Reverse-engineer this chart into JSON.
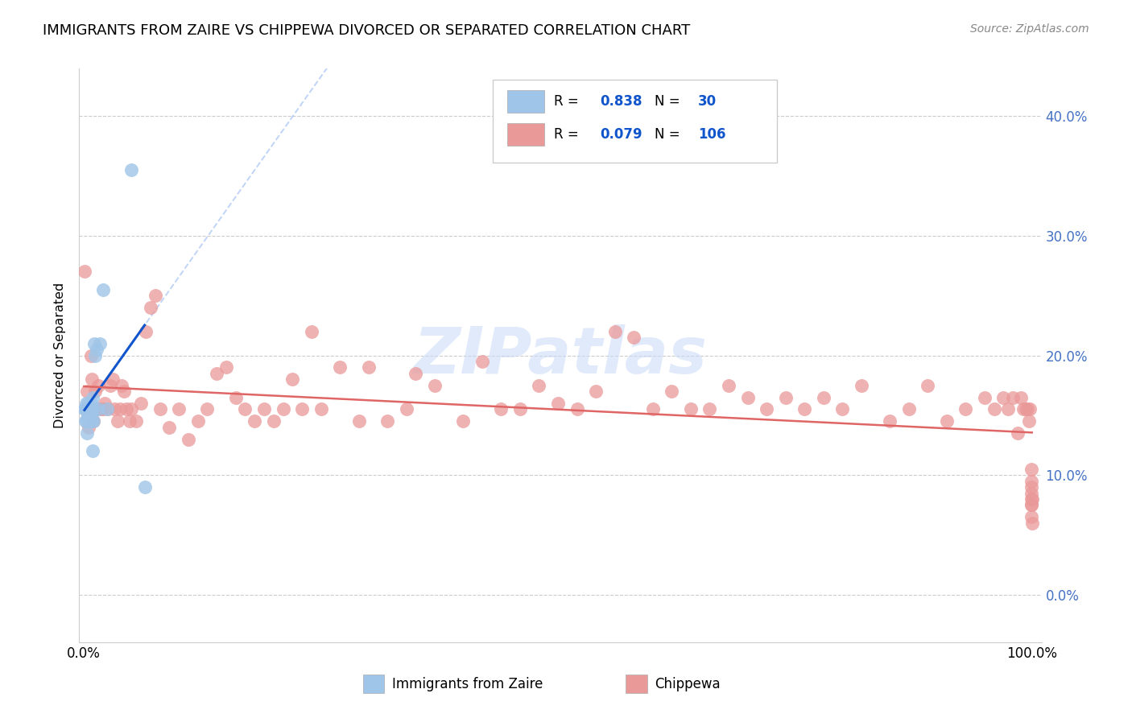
{
  "title": "IMMIGRANTS FROM ZAIRE VS CHIPPEWA DIVORCED OR SEPARATED CORRELATION CHART",
  "source": "Source: ZipAtlas.com",
  "ylabel": "Divorced or Separated",
  "legend_label1": "Immigrants from Zaire",
  "legend_label2": "Chippewa",
  "R1": "0.838",
  "N1": "30",
  "R2": "0.079",
  "N2": "106",
  "color_blue": "#9fc5e8",
  "color_pink": "#ea9999",
  "color_blue_line": "#1155cc",
  "color_pink_line": "#e06666",
  "color_blue_dash": "#a4c2f4",
  "color_legend_text": "#1155cc",
  "color_right_axis": "#4472c4",
  "watermark_text": "ZIPatlas",
  "watermark_color": "#c9daf8",
  "ytick_vals": [
    0.0,
    0.1,
    0.2,
    0.3,
    0.4
  ],
  "ytick_labels": [
    "0.0%",
    "10.0%",
    "20.0%",
    "30.0%",
    "40.0%"
  ],
  "xmin": 0.0,
  "xmax": 1.0,
  "ymin": -0.04,
  "ymax": 0.44,
  "blue_x": [
    0.0005,
    0.001,
    0.0015,
    0.002,
    0.002,
    0.003,
    0.003,
    0.004,
    0.004,
    0.005,
    0.005,
    0.006,
    0.006,
    0.007,
    0.007,
    0.008,
    0.008,
    0.009,
    0.009,
    0.01,
    0.01,
    0.011,
    0.012,
    0.013,
    0.015,
    0.017,
    0.02,
    0.024,
    0.05,
    0.064
  ],
  "blue_y": [
    0.155,
    0.155,
    0.145,
    0.16,
    0.145,
    0.155,
    0.135,
    0.15,
    0.16,
    0.155,
    0.145,
    0.155,
    0.145,
    0.15,
    0.16,
    0.155,
    0.145,
    0.12,
    0.165,
    0.155,
    0.145,
    0.21,
    0.2,
    0.205,
    0.155,
    0.21,
    0.255,
    0.155,
    0.355,
    0.09
  ],
  "pink_x": [
    0.001,
    0.002,
    0.003,
    0.004,
    0.005,
    0.006,
    0.007,
    0.008,
    0.009,
    0.01,
    0.012,
    0.015,
    0.015,
    0.018,
    0.02,
    0.022,
    0.025,
    0.028,
    0.03,
    0.032,
    0.035,
    0.038,
    0.04,
    0.042,
    0.045,
    0.048,
    0.05,
    0.055,
    0.06,
    0.065,
    0.07,
    0.075,
    0.08,
    0.09,
    0.1,
    0.11,
    0.12,
    0.13,
    0.14,
    0.15,
    0.16,
    0.17,
    0.18,
    0.19,
    0.2,
    0.21,
    0.22,
    0.23,
    0.24,
    0.25,
    0.27,
    0.29,
    0.3,
    0.32,
    0.34,
    0.35,
    0.37,
    0.4,
    0.42,
    0.44,
    0.46,
    0.48,
    0.5,
    0.52,
    0.54,
    0.56,
    0.58,
    0.6,
    0.62,
    0.64,
    0.66,
    0.68,
    0.7,
    0.72,
    0.74,
    0.76,
    0.78,
    0.8,
    0.82,
    0.85,
    0.87,
    0.89,
    0.91,
    0.93,
    0.95,
    0.96,
    0.97,
    0.975,
    0.98,
    0.985,
    0.988,
    0.991,
    0.993,
    0.995,
    0.997,
    0.998,
    0.999,
    0.999,
    0.999,
    0.9995,
    0.9995,
    0.9995,
    0.9997,
    0.9997,
    0.9998,
    0.9998
  ],
  "pink_y": [
    0.27,
    0.155,
    0.17,
    0.155,
    0.14,
    0.155,
    0.2,
    0.18,
    0.155,
    0.145,
    0.17,
    0.155,
    0.175,
    0.155,
    0.155,
    0.16,
    0.155,
    0.175,
    0.18,
    0.155,
    0.145,
    0.155,
    0.175,
    0.17,
    0.155,
    0.145,
    0.155,
    0.145,
    0.16,
    0.22,
    0.24,
    0.25,
    0.155,
    0.14,
    0.155,
    0.13,
    0.145,
    0.155,
    0.185,
    0.19,
    0.165,
    0.155,
    0.145,
    0.155,
    0.145,
    0.155,
    0.18,
    0.155,
    0.22,
    0.155,
    0.19,
    0.145,
    0.19,
    0.145,
    0.155,
    0.185,
    0.175,
    0.145,
    0.195,
    0.155,
    0.155,
    0.175,
    0.16,
    0.155,
    0.17,
    0.22,
    0.215,
    0.155,
    0.17,
    0.155,
    0.155,
    0.175,
    0.165,
    0.155,
    0.165,
    0.155,
    0.165,
    0.155,
    0.175,
    0.145,
    0.155,
    0.175,
    0.145,
    0.155,
    0.165,
    0.155,
    0.165,
    0.155,
    0.165,
    0.135,
    0.165,
    0.155,
    0.155,
    0.155,
    0.145,
    0.155,
    0.08,
    0.085,
    0.09,
    0.075,
    0.095,
    0.075,
    0.065,
    0.105,
    0.08,
    0.06
  ]
}
